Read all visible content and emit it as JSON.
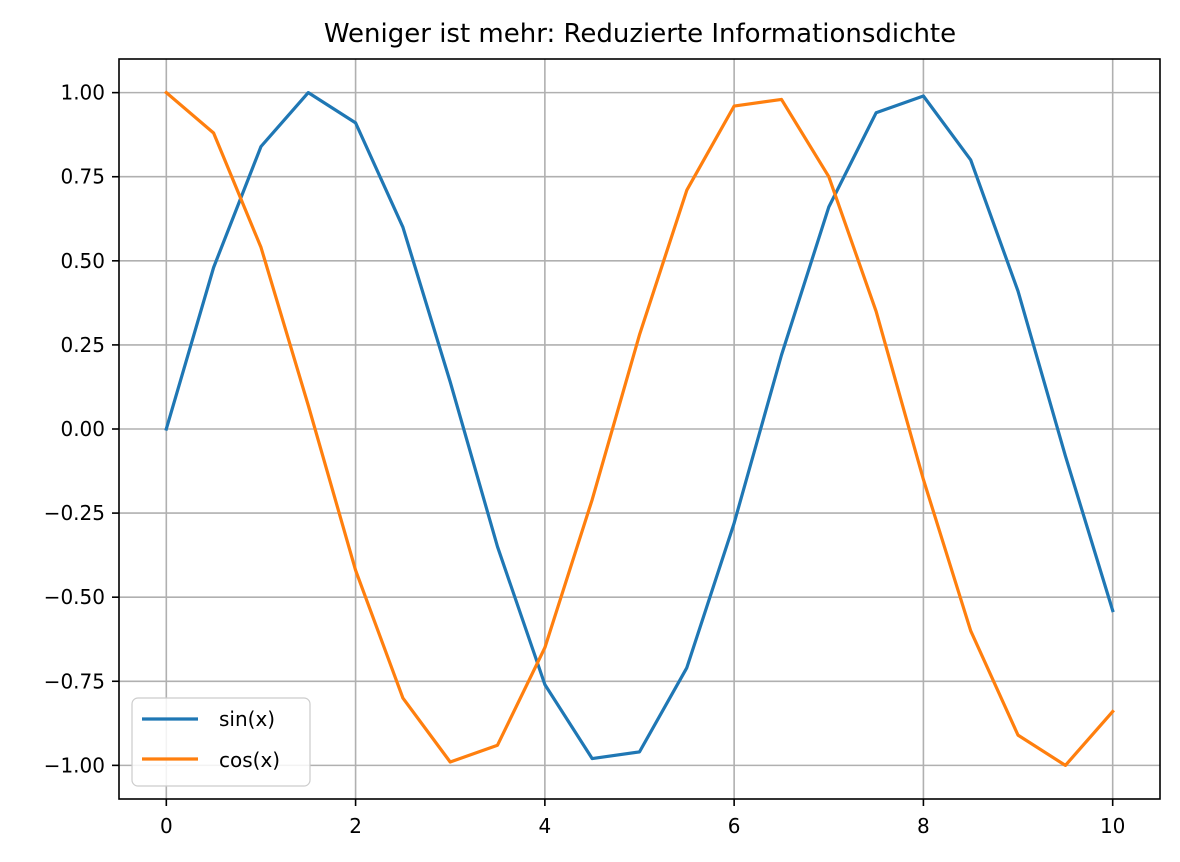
{
  "chart_data": {
    "type": "line",
    "title": "Weniger ist mehr: Reduzierte Informationsdichte",
    "xlabel": "",
    "ylabel": "",
    "xlim": [
      -0.5,
      10.5
    ],
    "ylim": [
      -1.1,
      1.1
    ],
    "grid": true,
    "legend_position": "lower left",
    "x_ticks": [
      0,
      2,
      4,
      6,
      8,
      10
    ],
    "x_tick_labels": [
      "0",
      "2",
      "4",
      "6",
      "8",
      "10"
    ],
    "y_ticks": [
      1.0,
      0.75,
      0.5,
      0.25,
      0.0,
      -0.25,
      -0.5,
      -0.75,
      -1.0
    ],
    "y_tick_labels": [
      "1.00",
      "0.75",
      "0.50",
      "0.25",
      "0.00",
      "−0.25",
      "−0.50",
      "−0.75",
      "−1.00"
    ],
    "x": [
      0,
      0.5,
      1,
      1.5,
      2,
      2.5,
      3,
      3.5,
      4,
      4.5,
      5,
      5.5,
      6,
      6.5,
      7,
      7.5,
      8,
      8.5,
      9,
      9.5,
      10
    ],
    "series": [
      {
        "name": "sin(x)",
        "color": "#1f77b4",
        "values": [
          0.0,
          0.48,
          0.84,
          1.0,
          0.91,
          0.6,
          0.14,
          -0.35,
          -0.76,
          -0.98,
          -0.96,
          -0.71,
          -0.28,
          0.22,
          0.66,
          0.94,
          0.99,
          0.8,
          0.41,
          -0.08,
          -0.54
        ]
      },
      {
        "name": "cos(x)",
        "color": "#ff7f0e",
        "values": [
          1.0,
          0.88,
          0.54,
          0.07,
          -0.42,
          -0.8,
          -0.99,
          -0.94,
          -0.65,
          -0.21,
          0.28,
          0.71,
          0.96,
          0.98,
          0.75,
          0.35,
          -0.15,
          -0.6,
          -0.91,
          -1.0,
          -0.84
        ]
      }
    ]
  }
}
